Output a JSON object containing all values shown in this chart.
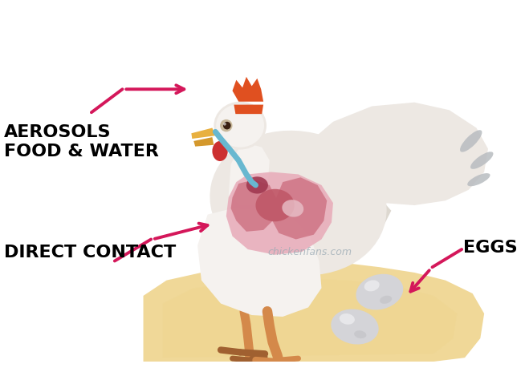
{
  "background_color": "#ffffff",
  "text_color": "#000000",
  "arrow_color": "#d4175a",
  "watermark": "chickenfans.com",
  "watermark_color": "#9aaab4",
  "labels": {
    "aerosols": "AEROSOLS",
    "food_water": "FOOD & WATER",
    "direct_contact": "DIRECT CONTACT",
    "eggs": "EGGS"
  },
  "chicken_body_color": "#ede8e3",
  "chicken_body_color2": "#f5f2ef",
  "chicken_comb_color": "#e05020",
  "chicken_beak_color": "#e8b040",
  "chicken_wattle_color": "#cc3030",
  "chicken_leg_color": "#d4894a",
  "chicken_leg_dark": "#a06030",
  "chicken_trachea_color": "#68b8d0",
  "organ_bg_color": "#e8aab8",
  "organ_mid_color": "#d07888",
  "organ_dark_color": "#c05868",
  "organ_darkest_color": "#a03850",
  "organ_accent": "#e8c0c8",
  "nest_color": "#f0d898",
  "egg_color": "#d4d4d8",
  "egg_shadow": "#b8b8bc",
  "egg_highlight": "#f0f0f2",
  "wing_gray1": "#b8bcc0",
  "wing_gray2": "#a0a4a8"
}
